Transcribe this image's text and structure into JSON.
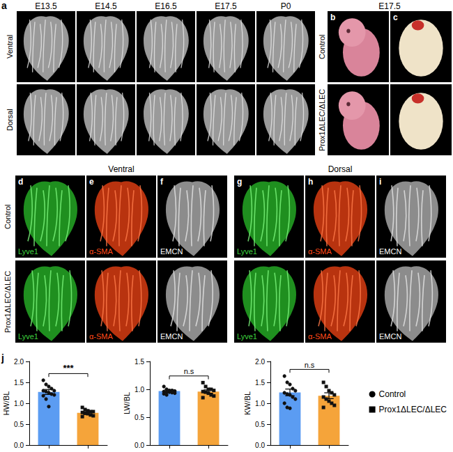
{
  "figure": {
    "panel_a": {
      "label": "a",
      "columns": [
        "E13.5",
        "E14.5",
        "E16.5",
        "E17.5",
        "P0"
      ],
      "rows": [
        "Ventral",
        "Dorsal"
      ]
    },
    "panel_bc": {
      "title": "E17.5",
      "labels": [
        "b",
        "c"
      ],
      "rows": [
        "Control",
        "Prox1ΔLEC/ΔLEC"
      ]
    },
    "panel_di": {
      "sections": [
        {
          "title": "Ventral",
          "labels": [
            "d",
            "e",
            "f"
          ]
        },
        {
          "title": "Dorsal",
          "labels": [
            "g",
            "h",
            "i"
          ]
        }
      ],
      "rows": [
        "Control",
        "Prox1ΔLEC/ΔLEC"
      ],
      "stains": [
        {
          "text": "Lyve1",
          "color": "#3fd13f"
        },
        {
          "text": "α-SMA",
          "color": "#ff4a1a"
        },
        {
          "text": "EMCN",
          "color": "#ffffff"
        }
      ]
    },
    "panel_j": {
      "label": "j"
    }
  },
  "chart_data": [
    {
      "type": "bar",
      "ylabel": "HW/BL",
      "categories": [
        null,
        null
      ],
      "ylim": [
        0,
        2
      ],
      "yticks": [
        {
          "value": 0,
          "label": "0.0"
        },
        {
          "value": 0.5,
          "label": "0.5"
        },
        {
          "value": 1,
          "label": "1.0"
        },
        {
          "value": 1.5,
          "label": "1.5"
        },
        {
          "value": 2,
          "label": "2.0"
        }
      ],
      "annotation": "***",
      "grid": false,
      "tick_labels": "y",
      "legend": "right",
      "series": [
        {
          "name": "Control",
          "color": "#5b9cf2",
          "marker": "circle",
          "values": [
            1.27,
            null
          ],
          "errors": [
            0.06,
            null
          ],
          "points": [
            [
              1.55,
              1.45,
              1.4,
              1.35,
              1.3,
              1.3,
              1.28,
              1.25,
              1.22,
              1.2,
              1.18,
              1.1,
              0.92
            ],
            []
          ]
        },
        {
          "name": "Prox1ΔLEC/ΔLEC",
          "color": "#f5a43a",
          "marker": "square",
          "values": [
            null,
            0.77
          ],
          "errors": [
            null,
            0.03
          ],
          "points": [
            [],
            [
              0.9,
              0.85,
              0.82,
              0.8,
              0.8,
              0.78,
              0.76,
              0.75,
              0.72,
              0.7,
              0.68
            ]
          ]
        }
      ]
    },
    {
      "type": "bar",
      "ylabel": "LW/BL",
      "categories": [
        null,
        null
      ],
      "ylim": [
        0,
        1.5
      ],
      "yticks": [
        {
          "value": 0,
          "label": "0.0"
        },
        {
          "value": 0.5,
          "label": "0.5"
        },
        {
          "value": 1,
          "label": "1.0"
        },
        {
          "value": 1.5,
          "label": "1.5"
        }
      ],
      "annotation": "n.s",
      "grid": false,
      "tick_labels": "y",
      "legend": "right",
      "series": [
        {
          "name": "Control",
          "color": "#5b9cf2",
          "marker": "circle",
          "values": [
            0.97,
            null
          ],
          "errors": [
            0.02,
            null
          ],
          "points": [
            [
              1.05,
              1.0,
              0.98,
              0.98,
              0.97,
              0.96,
              0.95,
              0.95,
              0.94,
              0.93,
              0.92,
              0.9
            ],
            []
          ]
        },
        {
          "name": "Prox1ΔLEC/ΔLEC",
          "color": "#f5a43a",
          "marker": "square",
          "values": [
            null,
            0.96
          ],
          "errors": [
            null,
            0.03
          ],
          "points": [
            [],
            [
              1.12,
              1.05,
              1.0,
              1.0,
              0.98,
              0.96,
              0.95,
              0.93,
              0.9,
              0.88,
              0.85
            ]
          ]
        }
      ]
    },
    {
      "type": "bar",
      "ylabel": "KW/BL",
      "categories": [
        null,
        null
      ],
      "ylim": [
        0,
        2
      ],
      "yticks": [
        {
          "value": 0,
          "label": "0.0"
        },
        {
          "value": 0.5,
          "label": "0.5"
        },
        {
          "value": 1,
          "label": "1.0"
        },
        {
          "value": 1.5,
          "label": "1.5"
        },
        {
          "value": 2,
          "label": "2.0"
        }
      ],
      "annotation": "n.s",
      "grid": false,
      "tick_labels": "y",
      "legend": "right",
      "series": [
        {
          "name": "Control",
          "color": "#5b9cf2",
          "marker": "circle",
          "values": [
            1.26,
            null
          ],
          "errors": [
            0.08,
            null
          ],
          "points": [
            [
              1.65,
              1.5,
              1.45,
              1.35,
              1.3,
              1.25,
              1.22,
              1.2,
              1.15,
              1.1,
              1.0,
              0.9,
              0.88
            ],
            []
          ]
        },
        {
          "name": "Prox1ΔLEC/ΔLEC",
          "color": "#f5a43a",
          "marker": "square",
          "values": [
            null,
            1.18
          ],
          "errors": [
            null,
            0.07
          ],
          "points": [
            [],
            [
              1.5,
              1.4,
              1.3,
              1.25,
              1.2,
              1.15,
              1.1,
              1.05,
              1.0,
              0.95,
              0.9
            ]
          ]
        }
      ]
    }
  ]
}
